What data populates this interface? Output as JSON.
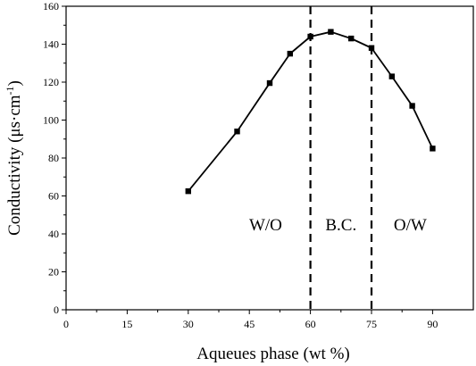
{
  "chart_data": {
    "type": "line",
    "title": "",
    "xlabel": "Aqueues phase (wt %)",
    "ylabel": "Conductivity (μs·cm⁻¹)",
    "ylabel_main": "Conductivity (μs·cm",
    "ylabel_sup": "-1",
    "ylabel_close": ")",
    "xlim": [
      0,
      100
    ],
    "ylim": [
      0,
      160
    ],
    "xticks": [
      0,
      15,
      30,
      45,
      60,
      75,
      90
    ],
    "yticks": [
      0,
      20,
      40,
      60,
      80,
      100,
      120,
      140,
      160
    ],
    "grid": false,
    "series": [
      {
        "x": [
          30,
          42,
          50,
          55,
          60,
          65,
          70,
          75,
          80,
          85,
          90
        ],
        "y": [
          62.5,
          94,
          119.5,
          135,
          144,
          146.5,
          143,
          138,
          123,
          107.5,
          85
        ]
      }
    ],
    "dashed_lines_x": [
      60,
      75
    ],
    "regions": [
      {
        "label": "W/O",
        "x": 49,
        "y": 42
      },
      {
        "label": "B.C.",
        "x": 67.5,
        "y": 42
      },
      {
        "label": "O/W",
        "x": 84.5,
        "y": 42
      }
    ],
    "colors": {
      "line": "#000000",
      "marker": "#000000",
      "axis": "#000000"
    }
  }
}
